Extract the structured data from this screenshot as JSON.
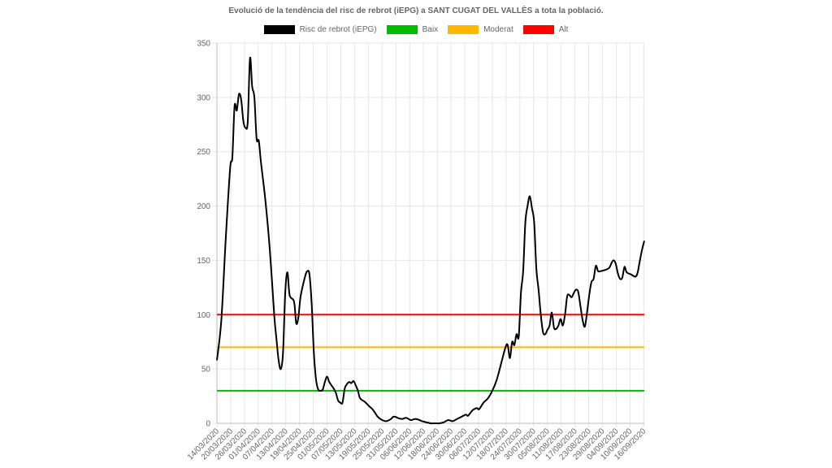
{
  "chart_data": {
    "type": "line",
    "title": "Evolució de la tendència del risc de rebrot (iEPG) a SANT CUGAT DEL VALLÈS a tota la població.",
    "xlabel": "",
    "ylabel": "",
    "ylim": [
      0,
      350
    ],
    "yticks": [
      0,
      50,
      100,
      150,
      200,
      250,
      300,
      350
    ],
    "x_tick_labels": [
      "14/03/2020",
      "20/03/2020",
      "26/03/2020",
      "01/04/2020",
      "07/04/2020",
      "13/04/2020",
      "19/04/2020",
      "25/04/2020",
      "01/05/2020",
      "07/05/2020",
      "13/05/2020",
      "19/05/2020",
      "25/05/2020",
      "31/05/2020",
      "06/06/2020",
      "12/06/2020",
      "18/06/2020",
      "24/06/2020",
      "30/06/2020",
      "06/07/2020",
      "12/07/2020",
      "18/07/2020",
      "24/07/2020",
      "30/07/2020",
      "05/08/2020",
      "11/08/2020",
      "17/08/2020",
      "23/08/2020",
      "29/08/2020",
      "04/09/2020",
      "10/09/2020",
      "16/09/2020"
    ],
    "grid": true,
    "legend_position": "top",
    "x_start": "14/03/2020",
    "series": [
      {
        "name": "Risc de rebrot (iEPG)",
        "color": "#000000",
        "points": [
          [
            0,
            58
          ],
          [
            2,
            95
          ],
          [
            4,
            170
          ],
          [
            6,
            235
          ],
          [
            7,
            245
          ],
          [
            8,
            292
          ],
          [
            9,
            288
          ],
          [
            10,
            303
          ],
          [
            11,
            298
          ],
          [
            12,
            278
          ],
          [
            13,
            272
          ],
          [
            14,
            278
          ],
          [
            15,
            336
          ],
          [
            16,
            310
          ],
          [
            17,
            300
          ],
          [
            18,
            262
          ],
          [
            19,
            260
          ],
          [
            20,
            240
          ],
          [
            22,
            205
          ],
          [
            24,
            160
          ],
          [
            26,
            100
          ],
          [
            27,
            78
          ],
          [
            28,
            58
          ],
          [
            29,
            50
          ],
          [
            30,
            65
          ],
          [
            31,
            120
          ],
          [
            32,
            139
          ],
          [
            33,
            118
          ],
          [
            35,
            112
          ],
          [
            36,
            92
          ],
          [
            37,
            98
          ],
          [
            38,
            117
          ],
          [
            40,
            135
          ],
          [
            41,
            140
          ],
          [
            42,
            137
          ],
          [
            43,
            110
          ],
          [
            44,
            65
          ],
          [
            45,
            40
          ],
          [
            46,
            31
          ],
          [
            47,
            30
          ],
          [
            48,
            31
          ],
          [
            49,
            38
          ],
          [
            50,
            43
          ],
          [
            51,
            38
          ],
          [
            53,
            32
          ],
          [
            54,
            28
          ],
          [
            55,
            21
          ],
          [
            56,
            19
          ],
          [
            57,
            19
          ],
          [
            58,
            32
          ],
          [
            59,
            36
          ],
          [
            60,
            38
          ],
          [
            61,
            37
          ],
          [
            62,
            39
          ],
          [
            63,
            35
          ],
          [
            64,
            30
          ],
          [
            65,
            23
          ],
          [
            67,
            20
          ],
          [
            69,
            16
          ],
          [
            71,
            12
          ],
          [
            73,
            6
          ],
          [
            75,
            3
          ],
          [
            77,
            2
          ],
          [
            79,
            4
          ],
          [
            80,
            6
          ],
          [
            81,
            6
          ],
          [
            82,
            5
          ],
          [
            84,
            4
          ],
          [
            86,
            5
          ],
          [
            88,
            3
          ],
          [
            90,
            4
          ],
          [
            92,
            3
          ],
          [
            93,
            2
          ],
          [
            95,
            1
          ],
          [
            97,
            0
          ],
          [
            99,
            0
          ],
          [
            101,
            0
          ],
          [
            103,
            1
          ],
          [
            105,
            3
          ],
          [
            107,
            2
          ],
          [
            109,
            4
          ],
          [
            111,
            6
          ],
          [
            113,
            8
          ],
          [
            114,
            7
          ],
          [
            116,
            12
          ],
          [
            118,
            14
          ],
          [
            119,
            13
          ],
          [
            121,
            19
          ],
          [
            123,
            23
          ],
          [
            125,
            30
          ],
          [
            127,
            40
          ],
          [
            129,
            55
          ],
          [
            131,
            70
          ],
          [
            132,
            72
          ],
          [
            133,
            60
          ],
          [
            134,
            75
          ],
          [
            135,
            72
          ],
          [
            136,
            82
          ],
          [
            137,
            80
          ],
          [
            138,
            120
          ],
          [
            139,
            140
          ],
          [
            140,
            185
          ],
          [
            141,
            200
          ],
          [
            142,
            209
          ],
          [
            143,
            198
          ],
          [
            144,
            185
          ],
          [
            145,
            142
          ],
          [
            146,
            123
          ],
          [
            147,
            100
          ],
          [
            148,
            84
          ],
          [
            149,
            82
          ],
          [
            150,
            86
          ],
          [
            151,
            90
          ],
          [
            152,
            102
          ],
          [
            153,
            88
          ],
          [
            154,
            87
          ],
          [
            155,
            90
          ],
          [
            156,
            96
          ],
          [
            157,
            90
          ],
          [
            158,
            100
          ],
          [
            159,
            117
          ],
          [
            160,
            118
          ],
          [
            161,
            116
          ],
          [
            162,
            120
          ],
          [
            163,
            123
          ],
          [
            164,
            121
          ],
          [
            165,
            108
          ],
          [
            166,
            95
          ],
          [
            167,
            89
          ],
          [
            168,
            102
          ],
          [
            169,
            118
          ],
          [
            170,
            130
          ],
          [
            171,
            133
          ],
          [
            172,
            145
          ],
          [
            173,
            140
          ],
          [
            174,
            140
          ],
          [
            176,
            141
          ],
          [
            178,
            143
          ],
          [
            179,
            147
          ],
          [
            180,
            150
          ],
          [
            181,
            147
          ],
          [
            182,
            138
          ],
          [
            183,
            133
          ],
          [
            184,
            134
          ],
          [
            185,
            144
          ],
          [
            186,
            139
          ],
          [
            188,
            137
          ],
          [
            190,
            135
          ],
          [
            191,
            139
          ],
          [
            192,
            150
          ],
          [
            193,
            160
          ],
          [
            194,
            168
          ]
        ]
      },
      {
        "name": "Baix",
        "color": "#00bb00",
        "constant": 30
      },
      {
        "name": "Moderat",
        "color": "#ffb800",
        "constant": 70
      },
      {
        "name": "Alt",
        "color": "#ff0000",
        "constant": 100
      }
    ]
  }
}
